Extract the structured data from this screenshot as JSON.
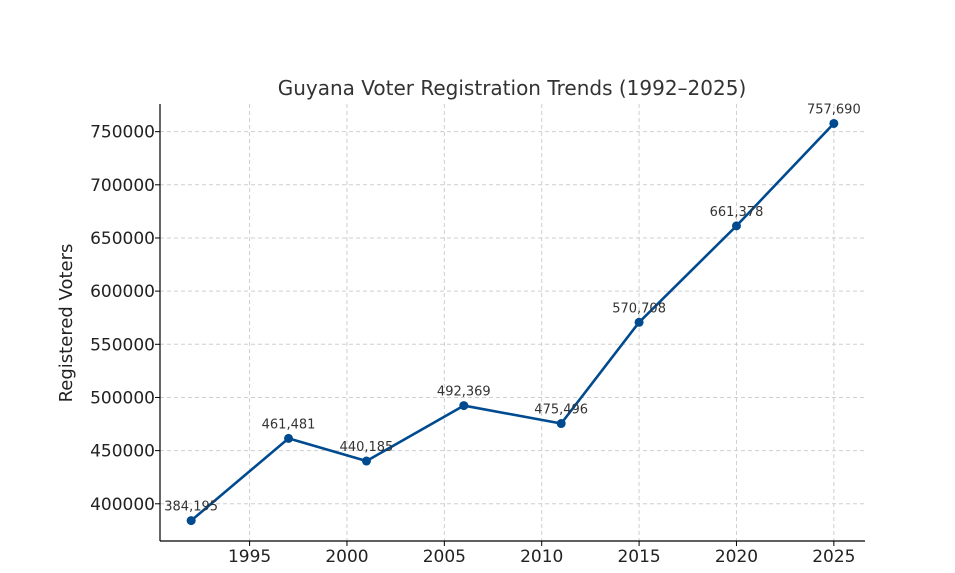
{
  "chart_data": {
    "type": "line",
    "title": "Guyana Voter Registration Trends (1992–2025)",
    "xlabel": "",
    "ylabel": "Registered Voters",
    "x": [
      1992,
      1997,
      2001,
      2006,
      2011,
      2015,
      2020,
      2025
    ],
    "series": [
      {
        "values": [
          384195,
          461481,
          440185,
          492369,
          475496,
          570708,
          661378,
          757690
        ],
        "color": "#004a8f"
      }
    ],
    "data_labels": [
      "384,195",
      "461,481",
      "440,185",
      "492,369",
      "475,496",
      "570,708",
      "661,378",
      "757,690"
    ],
    "xlim": [
      1990.4,
      2026.6
    ],
    "ylim": [
      365000,
      776000
    ],
    "x_ticks": [
      1995,
      2000,
      2005,
      2010,
      2015,
      2020,
      2025
    ],
    "y_ticks": [
      400000,
      450000,
      500000,
      550000,
      600000,
      650000,
      700000,
      750000
    ],
    "grid": true,
    "marker": "circle"
  }
}
